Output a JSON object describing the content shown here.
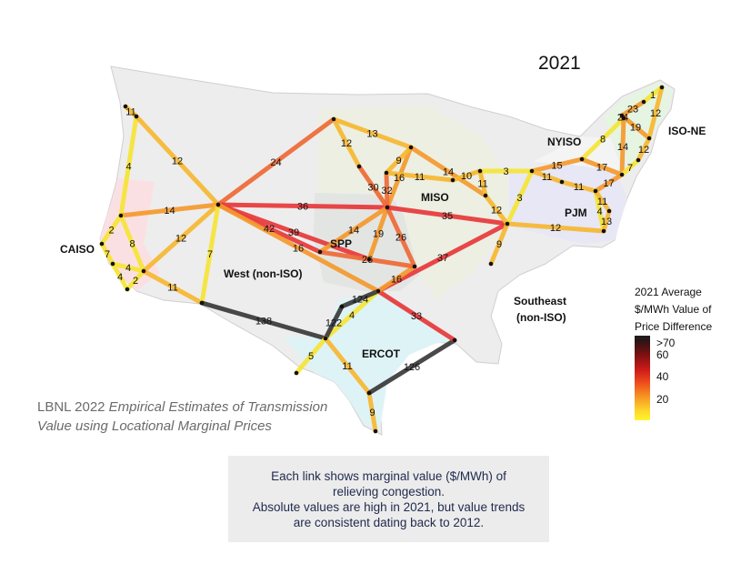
{
  "year": "2021",
  "regions": {
    "caiso": "CAISO",
    "west": "West (non-ISO)",
    "spp": "SPP",
    "miso": "MISO",
    "ercot": "ERCOT",
    "southeast": "Southeast\n(non-ISO)",
    "pjm": "PJM",
    "nyiso": "NYISO",
    "isone": "ISO-NE"
  },
  "legend": {
    "title": "2021 Average\n$/MWh Value of\nPrice Difference",
    "ticks": [
      ">70",
      "60",
      "40",
      "20"
    ]
  },
  "citation": {
    "prefix": "LBNL 2022 ",
    "italic_line1": "Empirical Estimates of Transmission",
    "italic_line2": "Value using Locational Marginal Prices"
  },
  "caption": {
    "line1": "Each link shows marginal value ($/MWh) of",
    "line2": "relieving congestion.",
    "line3": "Absolute values are high in 2021, but value trends",
    "line4": "are consistent dating back to 2012."
  },
  "links": [
    {
      "from": "nw_top",
      "to": "nw2",
      "value": "11"
    },
    {
      "from": "nw2",
      "to": "ca_n",
      "value": "4"
    },
    {
      "from": "nw2",
      "to": "west_hub",
      "value": "12"
    },
    {
      "from": "ca_n",
      "to": "west_hub",
      "value": "14"
    },
    {
      "from": "ca_n",
      "to": "ca_mid",
      "value": "2"
    },
    {
      "from": "ca_n",
      "to": "sw_mid",
      "value": "8"
    },
    {
      "from": "ca_mid",
      "to": "la",
      "value": "7"
    },
    {
      "from": "la",
      "to": "sd",
      "value": "4"
    },
    {
      "from": "la",
      "to": "sw_mid",
      "value": "4"
    },
    {
      "from": "sd",
      "to": "sw_mid",
      "value": "2"
    },
    {
      "from": "sw_mid",
      "to": "west_hub",
      "value": "12"
    },
    {
      "from": "sw_mid",
      "to": "az",
      "value": "11"
    },
    {
      "from": "west_hub",
      "to": "az",
      "value": "7"
    },
    {
      "from": "west_hub",
      "to": "dakota",
      "value": "24"
    },
    {
      "from": "west_hub",
      "to": "spp_c",
      "value": "36"
    },
    {
      "from": "west_hub",
      "to": "spp_w",
      "value": "42"
    },
    {
      "from": "west_hub",
      "to": "spp_s",
      "value": "39"
    },
    {
      "from": "west_hub",
      "to": "tx_pan",
      "value": "16"
    },
    {
      "from": "az",
      "to": "tx_w",
      "value": "138"
    },
    {
      "from": "tx_w",
      "to": "tx_pan",
      "value": "4"
    },
    {
      "from": "tx_w",
      "to": "tx_n",
      "value": "122"
    },
    {
      "from": "tx_n",
      "to": "tx_pan",
      "value": "124"
    },
    {
      "from": "tx_w",
      "to": "tx_sw",
      "value": "5"
    },
    {
      "from": "tx_w",
      "to": "tx_s",
      "value": "11"
    },
    {
      "from": "tx_s",
      "to": "tx_tip",
      "value": "9"
    },
    {
      "from": "tx_s",
      "to": "houston",
      "value": "126"
    },
    {
      "from": "tx_pan",
      "to": "houston",
      "value": "33"
    },
    {
      "from": "tx_pan",
      "to": "se_hub",
      "value": "37"
    },
    {
      "from": "tx_pan",
      "to": "spp_se",
      "value": "16"
    },
    {
      "from": "spp_w",
      "to": "spp_c",
      "value": "14"
    },
    {
      "from": "spp_w",
      "to": "spp_se",
      "value": "26"
    },
    {
      "from": "spp_s",
      "to": "spp_c",
      "value": "19"
    },
    {
      "from": "spp_c",
      "to": "spp_se",
      "value": "26"
    },
    {
      "from": "dakota",
      "to": "mn",
      "value": "13"
    },
    {
      "from": "dakota",
      "to": "dak_s",
      "value": "12"
    },
    {
      "from": "dak_s",
      "to": "spp_c",
      "value": "30"
    },
    {
      "from": "mn",
      "to": "spp_c",
      "value": "16"
    },
    {
      "from": "wi",
      "to": "spp_c",
      "value": "32"
    },
    {
      "from": "mn",
      "to": "wi",
      "value": "9"
    },
    {
      "from": "spp_c",
      "to": "se_hub",
      "value": "35"
    },
    {
      "from": "mn",
      "to": "miso_e",
      "value": "14"
    },
    {
      "from": "wi",
      "to": "mi1",
      "value": "11"
    },
    {
      "from": "miso_e",
      "to": "se_hub",
      "value": "12"
    },
    {
      "from": "mi1",
      "to": "mi2",
      "value": "10"
    },
    {
      "from": "mi2",
      "to": "oh",
      "value": "3"
    },
    {
      "from": "mi2",
      "to": "miso_e",
      "value": "11"
    },
    {
      "from": "oh",
      "to": "se_hub",
      "value": "3"
    },
    {
      "from": "oh",
      "to": "ny_w",
      "value": "15"
    },
    {
      "from": "oh",
      "to": "pjm_w",
      "value": "11"
    },
    {
      "from": "se_hub",
      "to": "pjm_w2",
      "value": "11"
    },
    {
      "from": "se_hub",
      "to": "pjm_s",
      "value": "12"
    },
    {
      "from": "se_hub",
      "to": "se_s",
      "value": "9"
    },
    {
      "from": "ny_w",
      "to": "ny_e",
      "value": "8"
    },
    {
      "from": "ny_w",
      "to": "nyc",
      "value": "17"
    },
    {
      "from": "ny_e",
      "to": "nyc",
      "value": "14"
    },
    {
      "from": "pjm_w",
      "to": "pjm_c",
      "value": "11"
    },
    {
      "from": "pjm_c",
      "to": "nyc",
      "value": "17"
    },
    {
      "from": "pjm_c",
      "to": "pjm_s",
      "value": "4"
    },
    {
      "from": "pjm_c",
      "to": "va",
      "value": "11"
    },
    {
      "from": "va",
      "to": "pjm_s",
      "value": "13"
    },
    {
      "from": "ny_e",
      "to": "vt",
      "value": "24"
    },
    {
      "from": "ne_n",
      "to": "vt",
      "value": "23"
    },
    {
      "from": "ne_n",
      "to": "me",
      "value": "1"
    },
    {
      "from": "vt",
      "to": "bos",
      "value": "19"
    },
    {
      "from": "me",
      "to": "bos",
      "value": "12"
    },
    {
      "from": "bos",
      "to": "ct",
      "value": "12"
    },
    {
      "from": "ct",
      "to": "nyc",
      "value": "7"
    }
  ]
}
